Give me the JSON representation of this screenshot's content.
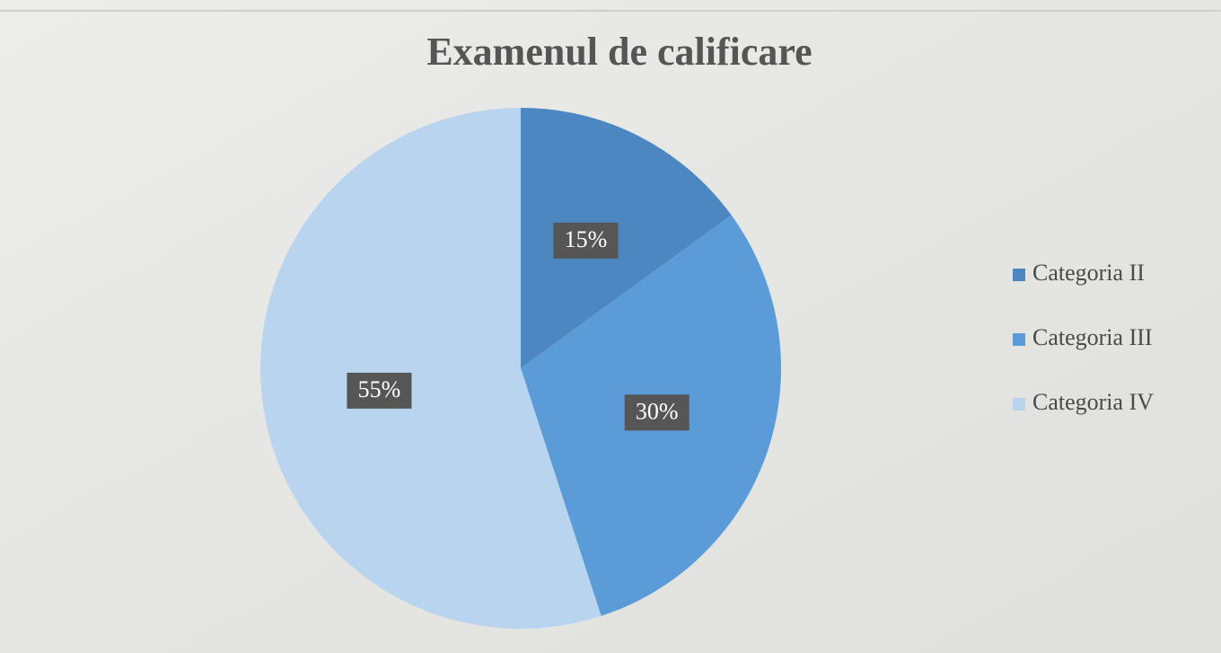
{
  "chart_data": {
    "type": "pie",
    "title": "Examenul de calificare",
    "categories": [
      "Categoria II",
      "Categoria III",
      "Categoria IV"
    ],
    "values": [
      15,
      30,
      55
    ],
    "value_labels": [
      "15%",
      "30%",
      "55%"
    ],
    "colors": [
      "#4d87c2",
      "#5b9bd8",
      "#b9d4ef"
    ],
    "legend": "right"
  }
}
